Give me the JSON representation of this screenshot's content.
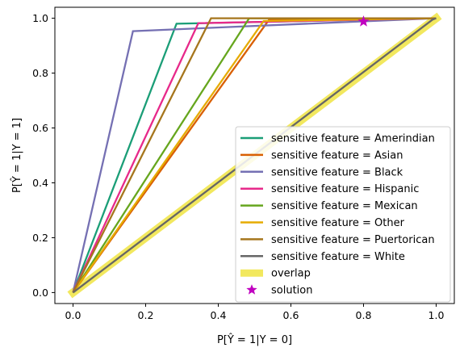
{
  "chart_data": {
    "type": "line",
    "xlabel": "P[Ŷ = 1|Y = 0]",
    "ylabel": "P[Ŷ = 1|Y = 1]",
    "xlim": [
      -0.05,
      1.05
    ],
    "ylim": [
      -0.04,
      1.04
    ],
    "xticks": [
      "0.0",
      "0.2",
      "0.4",
      "0.6",
      "0.8",
      "1.0"
    ],
    "yticks": [
      "0.0",
      "0.2",
      "0.4",
      "0.6",
      "0.8",
      "1.0"
    ],
    "grid": false,
    "legend_position": "lower-right",
    "series": [
      {
        "name": "sensitive feature = Amerindian",
        "color": "#1b9e77",
        "x": [
          0,
          0.285,
          1
        ],
        "y": [
          0,
          0.98,
          1
        ]
      },
      {
        "name": "sensitive feature = Asian",
        "color": "#d95f02",
        "x": [
          0,
          0.54,
          1
        ],
        "y": [
          0,
          0.995,
          1
        ]
      },
      {
        "name": "sensitive feature = Black",
        "color": "#7570b3",
        "x": [
          0,
          0.165,
          1
        ],
        "y": [
          0,
          0.953,
          1
        ]
      },
      {
        "name": "sensitive feature = Hispanic",
        "color": "#e7298a",
        "x": [
          0,
          0.345,
          1
        ],
        "y": [
          0,
          0.982,
          1
        ]
      },
      {
        "name": "sensitive feature = Mexican",
        "color": "#66a61e",
        "x": [
          0,
          0.485,
          1
        ],
        "y": [
          0,
          1.0,
          1
        ]
      },
      {
        "name": "sensitive feature = Other",
        "color": "#e6ab02",
        "x": [
          0,
          0.525,
          1
        ],
        "y": [
          0,
          0.99,
          1
        ]
      },
      {
        "name": "sensitive feature = Puertorican",
        "color": "#a6761d",
        "x": [
          0,
          0.38,
          1
        ],
        "y": [
          0,
          1.0,
          1
        ]
      },
      {
        "name": "sensitive feature = White",
        "color": "#666666",
        "x": [
          0,
          0.99,
          1
        ],
        "y": [
          0,
          0.995,
          1
        ]
      }
    ],
    "overlap": {
      "name": "overlap",
      "color": "#f0e442",
      "x": [
        0,
        0.99,
        1
      ],
      "y": [
        0,
        0.99,
        1
      ]
    },
    "solution": {
      "name": "solution",
      "color": "#c000c0",
      "x": 0.8,
      "y": 0.988
    }
  }
}
